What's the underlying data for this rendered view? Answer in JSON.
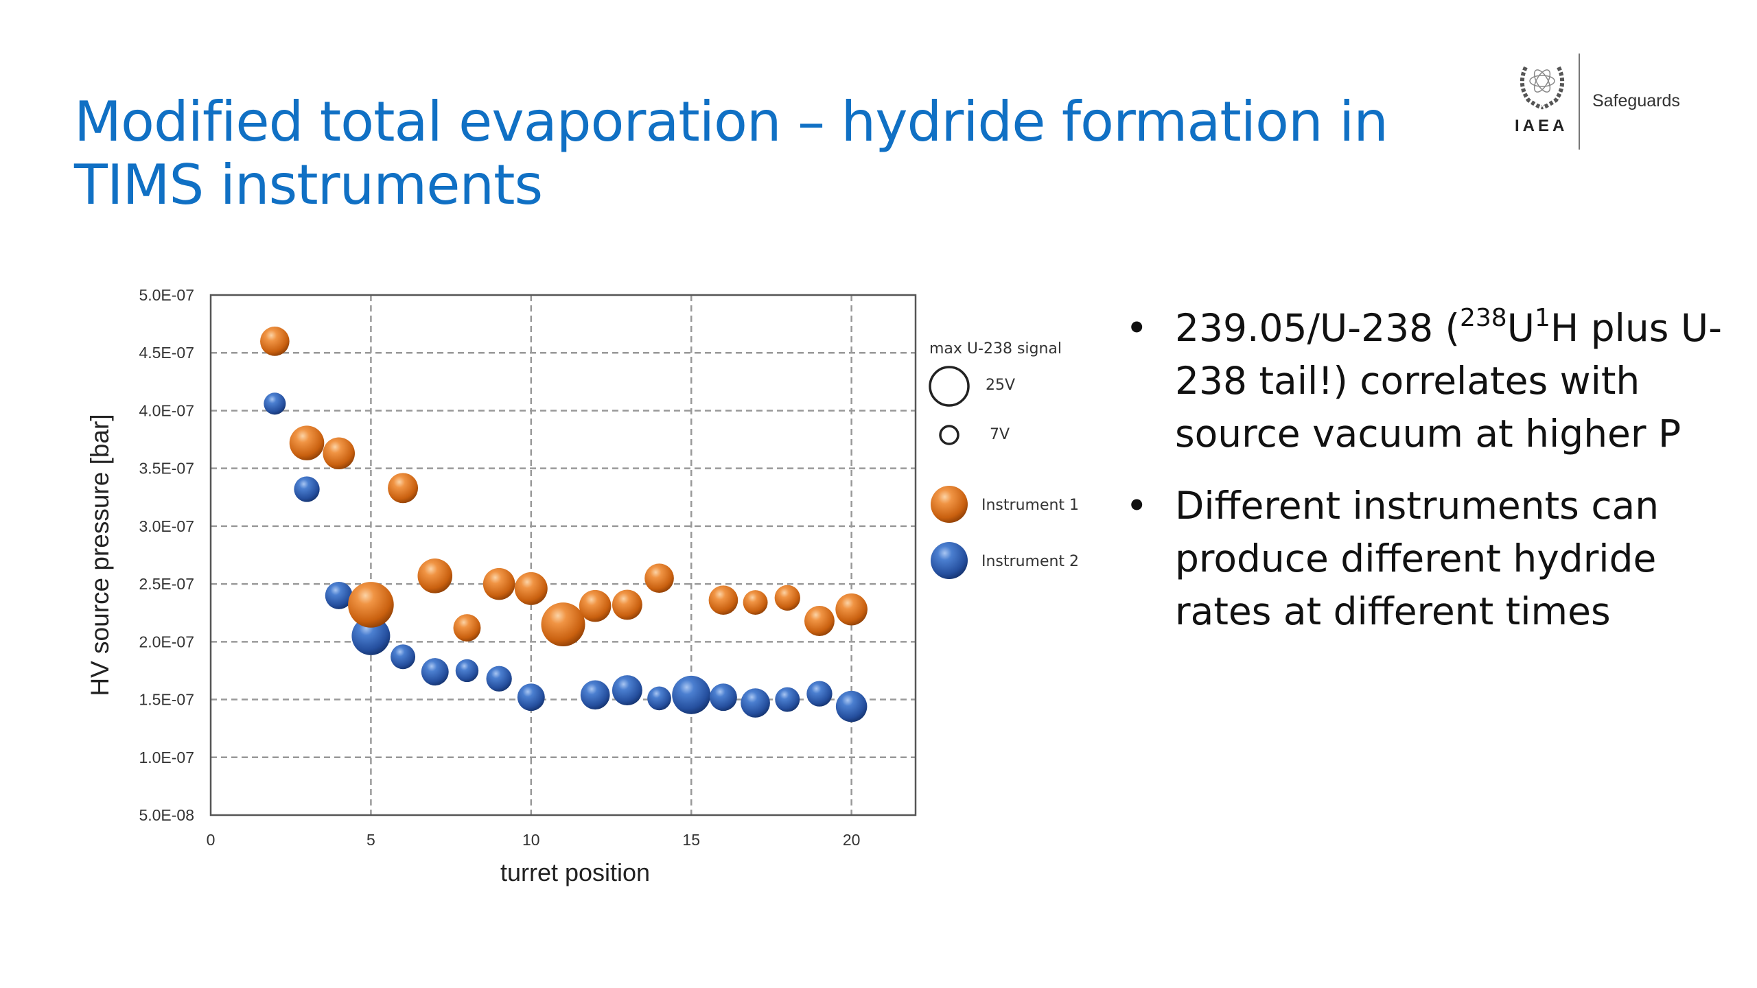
{
  "title": "Modified total evaporation – hydride formation in TIMS instruments",
  "logo": {
    "org": "IAEA",
    "department": "Safeguards"
  },
  "bullets": [
    {
      "pre": "239.05/U-238 (",
      "sup1": "238",
      "mid": "U",
      "sup2": "1",
      "post": "H plus U-238 tail!) correlates with source vacuum at higher P"
    },
    {
      "text": "Different instruments can produce different hydride rates at different times"
    }
  ],
  "bullet_symbol": "•",
  "colors": {
    "title": "#1070c4",
    "instrument1": "#e07a22",
    "instrument2": "#2f62b8"
  },
  "chart_data": {
    "type": "scatter",
    "subtype": "bubble",
    "title": "",
    "xlabel": "turret position",
    "ylabel": "HV source pressure [bar]",
    "xlim": [
      0,
      22
    ],
    "ylim": [
      5e-08,
      5e-07
    ],
    "xticks": [
      0,
      5,
      10,
      15,
      20
    ],
    "xtick_labels": [
      "0",
      "5",
      "10",
      "15",
      "20"
    ],
    "yticks": [
      5e-08,
      1e-07,
      1.5e-07,
      2e-07,
      2.5e-07,
      3e-07,
      3.5e-07,
      4e-07,
      4.5e-07,
      5e-07
    ],
    "ytick_labels": [
      "5.0E-08",
      "1.0E-07",
      "1.5E-07",
      "2.0E-07",
      "2.5E-07",
      "3.0E-07",
      "3.5E-07",
      "4.0E-07",
      "4.5E-07",
      "5.0E-07"
    ],
    "grid": true,
    "legend_placement": "right",
    "size_legend": {
      "title": "max U-238 signal",
      "entries": [
        {
          "label": "25V",
          "value": 25
        },
        {
          "label": "7V",
          "value": 7
        }
      ]
    },
    "series": [
      {
        "name": "Instrument 1",
        "color": "#e07a22",
        "x": [
          2,
          3,
          4,
          5,
          6,
          7,
          8,
          9,
          10,
          11,
          12,
          13,
          14,
          16,
          17,
          18,
          19,
          20
        ],
        "y": [
          4.6e-07,
          3.72e-07,
          3.63e-07,
          2.32e-07,
          3.33e-07,
          2.57e-07,
          2.12e-07,
          2.5e-07,
          2.46e-07,
          2.15e-07,
          2.31e-07,
          2.32e-07,
          2.55e-07,
          2.36e-07,
          2.34e-07,
          2.38e-07,
          2.18e-07,
          2.28e-07
        ],
        "signal_V": [
          14.5,
          20.4,
          17.3,
          35.4,
          15.4,
          20.4,
          12.7,
          17.3,
          18.3,
          32.6,
          17.3,
          15.4,
          14.5,
          14.5,
          10.3,
          11.1,
          15.4,
          17.3
        ]
      },
      {
        "name": "Instrument 2",
        "color": "#2f62b8",
        "x": [
          2,
          3,
          4,
          5,
          6,
          7,
          8,
          9,
          10,
          12,
          13,
          14,
          15,
          16,
          17,
          18,
          19,
          20
        ],
        "y": [
          4.06e-07,
          3.32e-07,
          2.4e-07,
          2.05e-07,
          1.87e-07,
          1.74e-07,
          1.75e-07,
          1.68e-07,
          1.52e-07,
          1.54e-07,
          1.58e-07,
          1.51e-07,
          1.54e-07,
          1.52e-07,
          1.47e-07,
          1.5e-07,
          1.55e-07,
          1.44e-07
        ],
        "signal_V": [
          8.2,
          11.1,
          12.7,
          25,
          10.3,
          12.7,
          8.9,
          11.1,
          12.7,
          14.5,
          15.4,
          9.6,
          25,
          12.7,
          14.5,
          10.3,
          11.1,
          16.5
        ]
      }
    ]
  }
}
